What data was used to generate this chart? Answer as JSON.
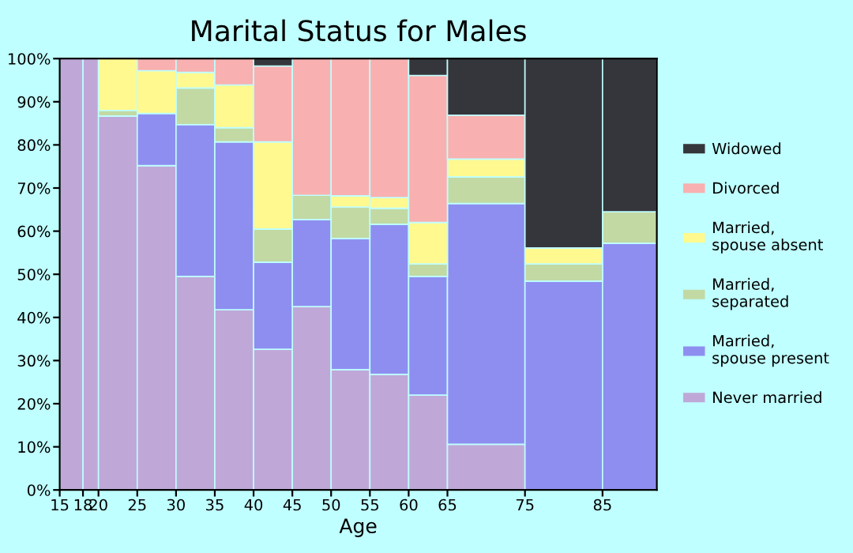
{
  "chart_data": {
    "type": "bar",
    "stacked": true,
    "title": "Marital Status for Males",
    "xlabel": "Age",
    "x": [
      16.5,
      19,
      22.5,
      27.5,
      32.5,
      37.5,
      42.5,
      47.5,
      52.5,
      57.5,
      62.5,
      70,
      80,
      88.5
    ],
    "xlim": [
      15,
      92
    ],
    "xticks": [
      15,
      18,
      20,
      25,
      30,
      35,
      40,
      45,
      50,
      55,
      60,
      65,
      75,
      85
    ],
    "ylim": [
      0,
      100
    ],
    "yticks": [
      {
        "value": 0,
        "label": "0%"
      },
      {
        "value": 10,
        "label": "10%"
      },
      {
        "value": 20,
        "label": "20%"
      },
      {
        "value": 30,
        "label": "30%"
      },
      {
        "value": 40,
        "label": "40%"
      },
      {
        "value": 50,
        "label": "50%"
      },
      {
        "value": 60,
        "label": "60%"
      },
      {
        "value": 70,
        "label": "70%"
      },
      {
        "value": 80,
        "label": "80%"
      },
      {
        "value": 90,
        "label": "90%"
      },
      {
        "value": 100,
        "label": "100%"
      }
    ],
    "legend": "right",
    "grid": false,
    "series": [
      {
        "name": "Never married",
        "color": "#bfa8d8",
        "values": [
          100,
          100,
          86.7,
          75.2,
          49.5,
          41.8,
          32.6,
          42.5,
          27.9,
          26.8,
          22.0,
          10.6,
          0,
          0
        ]
      },
      {
        "name": "Married,\nspouse present",
        "color": "#8e8ef0",
        "values": [
          0,
          0,
          0,
          12.1,
          35.2,
          38.9,
          20.2,
          20.2,
          30.4,
          34.8,
          27.5,
          55.8,
          48.4,
          57.2
        ]
      },
      {
        "name": "Married,\nseparated",
        "color": "#c2d9a4",
        "values": [
          0,
          0,
          1.3,
          0,
          8.5,
          3.3,
          7.7,
          5.6,
          7.3,
          3.7,
          2.9,
          6.2,
          4.0,
          7.3
        ]
      },
      {
        "name": "Married,\nspouse absent",
        "color": "#fff98f",
        "values": [
          0,
          0,
          12.0,
          9.9,
          3.6,
          9.9,
          20.2,
          0,
          2.6,
          2.5,
          9.6,
          4.1,
          3.7,
          0
        ]
      },
      {
        "name": "Divorced",
        "color": "#f9b0b0",
        "values": [
          0,
          0,
          0,
          2.8,
          3.2,
          6.1,
          17.6,
          31.7,
          31.8,
          32.2,
          34.1,
          10.2,
          0,
          0
        ]
      },
      {
        "name": "Widowed",
        "color": "#35363b",
        "values": [
          0,
          0,
          0,
          0,
          0,
          0,
          1.7,
          0,
          0,
          0,
          3.9,
          13.1,
          43.9,
          35.5
        ]
      }
    ]
  }
}
